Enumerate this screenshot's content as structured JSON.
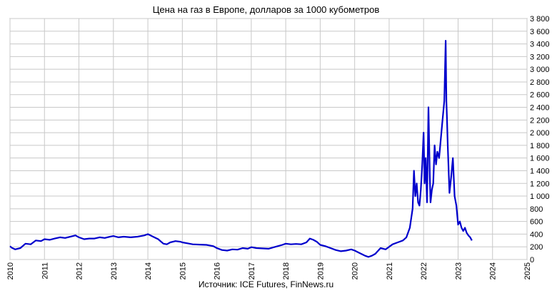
{
  "chart_data": {
    "type": "line",
    "title": "Цена на газ в Европе, долларов за 1000 кубометров",
    "source": "Источник: ICE Futures, FinNews.ru",
    "xlabel": "",
    "ylabel": "",
    "xlim": [
      2010,
      2025
    ],
    "ylim": [
      0,
      3800
    ],
    "y_axis_side": "right",
    "grid": true,
    "legend": "none",
    "line_color": "#0000cc",
    "x_ticks": [
      "2010",
      "2011",
      "2012",
      "2013",
      "2014",
      "2015",
      "2016",
      "2017",
      "2018",
      "2019",
      "2020",
      "2021",
      "2022",
      "2023",
      "2024",
      "2025"
    ],
    "y_ticks": [
      "0",
      "200",
      "400",
      "600",
      "800",
      "1 000",
      "1 200",
      "1 400",
      "1 600",
      "1 800",
      "2 000",
      "2 200",
      "2 400",
      "2 600",
      "2 800",
      "3 000",
      "3 200",
      "3 400",
      "3 600",
      "3 800"
    ],
    "series": [
      {
        "x": [
          2010.0,
          2010.05,
          2010.15,
          2010.3,
          2010.45,
          2010.6,
          2010.75,
          2010.9,
          2011.0,
          2011.15,
          2011.3,
          2011.45,
          2011.6,
          2011.75,
          2011.9,
          2012.0,
          2012.15,
          2012.3,
          2012.45,
          2012.6,
          2012.75,
          2012.9,
          2013.0,
          2013.15,
          2013.3,
          2013.5,
          2013.7,
          2013.9,
          2014.0,
          2014.15,
          2014.3,
          2014.45,
          2014.55,
          2014.65,
          2014.8,
          2014.95,
          2015.0,
          2015.15,
          2015.3,
          2015.5,
          2015.7,
          2015.9,
          2016.0,
          2016.15,
          2016.3,
          2016.45,
          2016.6,
          2016.75,
          2016.9,
          2017.0,
          2017.15,
          2017.3,
          2017.5,
          2017.7,
          2017.9,
          2018.0,
          2018.15,
          2018.3,
          2018.45,
          2018.6,
          2018.7,
          2018.8,
          2018.9,
          2019.0,
          2019.15,
          2019.3,
          2019.45,
          2019.6,
          2019.75,
          2019.9,
          2020.0,
          2020.15,
          2020.3,
          2020.4,
          2020.5,
          2020.6,
          2020.75,
          2020.9,
          2021.0,
          2021.1,
          2021.2,
          2021.3,
          2021.4,
          2021.5,
          2021.6,
          2021.68,
          2021.72,
          2021.76,
          2021.8,
          2021.84,
          2021.88,
          2021.92,
          2021.96,
          2022.0,
          2022.03,
          2022.06,
          2022.1,
          2022.14,
          2022.18,
          2022.2,
          2022.24,
          2022.28,
          2022.32,
          2022.36,
          2022.4,
          2022.45,
          2022.5,
          2022.55,
          2022.6,
          2022.64,
          2022.66,
          2022.68,
          2022.7,
          2022.75,
          2022.8,
          2022.85,
          2022.9,
          2022.95,
          2023.0,
          2023.05,
          2023.1,
          2023.15,
          2023.2,
          2023.25,
          2023.3,
          2023.35,
          2023.4
        ],
        "values": [
          210,
          185,
          160,
          180,
          250,
          240,
          300,
          290,
          320,
          310,
          330,
          350,
          340,
          360,
          380,
          350,
          320,
          330,
          330,
          350,
          340,
          360,
          370,
          350,
          360,
          350,
          360,
          380,
          400,
          360,
          320,
          250,
          240,
          270,
          290,
          280,
          270,
          255,
          240,
          235,
          230,
          210,
          180,
          150,
          140,
          160,
          155,
          180,
          170,
          195,
          180,
          175,
          170,
          200,
          230,
          250,
          240,
          245,
          240,
          270,
          330,
          310,
          280,
          230,
          210,
          180,
          150,
          130,
          140,
          160,
          140,
          100,
          60,
          40,
          60,
          90,
          180,
          160,
          200,
          240,
          260,
          280,
          300,
          350,
          500,
          800,
          1400,
          1000,
          1200,
          900,
          850,
          1100,
          1500,
          2000,
          1200,
          1600,
          900,
          2400,
          1300,
          900,
          1100,
          1200,
          1800,
          1500,
          1700,
          1600,
          1900,
          2200,
          2500,
          3450,
          2500,
          2200,
          1800,
          1050,
          1300,
          1600,
          1000,
          850,
          550,
          600,
          500,
          450,
          500,
          420,
          380,
          350,
          300
        ]
      }
    ]
  }
}
